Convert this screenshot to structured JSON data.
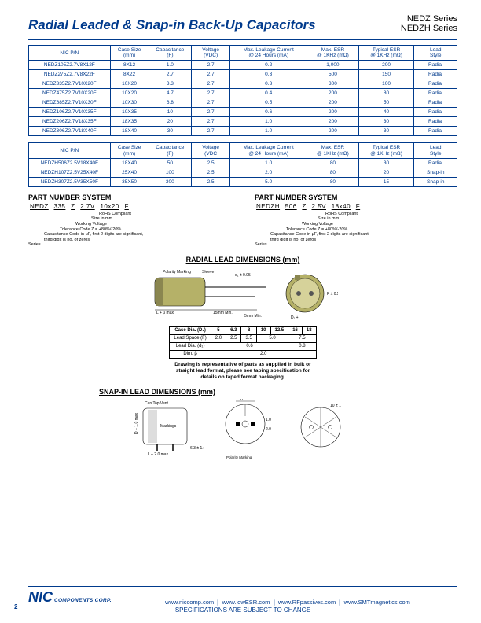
{
  "header": {
    "title": "Radial Leaded & Snap-in Back-Up Capacitors",
    "series1": "NEDZ Series",
    "series2": "NEDZH Series"
  },
  "colors": {
    "brand": "#003a8c",
    "cap_body": "#b5b168",
    "cap_band": "#8a8650"
  },
  "table1": {
    "headers": [
      "NIC P/N",
      "Case Size\n(mm)",
      "Capacitance\n(F)",
      "Voltage\n(VDC)",
      "Max. Leakage Current\n@ 24 Hours (mA)",
      "Max. ESR\n@ 1KHz (mΩ)",
      "Typical ESR\n@ 1KHz (mΩ)",
      "Lead\nStyle"
    ],
    "rows": [
      [
        "NEDZ105Z2.7V8X12F",
        "8X12",
        "1.0",
        "2.7",
        "0.2",
        "1,000",
        "200",
        "Radial"
      ],
      [
        "NEDZ275Z2.7V8X22F",
        "8X22",
        "2.7",
        "2.7",
        "0.3",
        "500",
        "150",
        "Radial"
      ],
      [
        "NEDZ335Z2.7V10X20F",
        "10X20",
        "3.3",
        "2.7",
        "0.3",
        "300",
        "100",
        "Radial"
      ],
      [
        "NEDZ475Z2.7V10X20F",
        "10X20",
        "4.7",
        "2.7",
        "0.4",
        "200",
        "80",
        "Radial"
      ],
      [
        "NEDZ685Z2.7V10X30F",
        "10X30",
        "6.8",
        "2.7",
        "0.5",
        "200",
        "50",
        "Radial"
      ],
      [
        "NEDZ106Z2.7V10X35F",
        "10X35",
        "10",
        "2.7",
        "0.6",
        "200",
        "40",
        "Radial"
      ],
      [
        "NEDZ206Z2.7V18X35F",
        "18X35",
        "20",
        "2.7",
        "1.0",
        "200",
        "30",
        "Radial"
      ],
      [
        "NEDZ306Z2.7V18X40F",
        "18X40",
        "30",
        "2.7",
        "1.0",
        "200",
        "30",
        "Radial"
      ]
    ]
  },
  "table2": {
    "headers": [
      "NIC P/N",
      "Case Size\n(mm)",
      "Capacitance\n(F)",
      "Voltage\n(VDC",
      "Max. Leakage Current\n@ 24 Hours (mA)",
      "Max. ESR\n@ 1KHz (mΩ)",
      "Typical ESR\n@ 1KHz (mΩ)",
      "Lead\nStyle"
    ],
    "rows": [
      [
        "NEDZH506Z2.5V18X40F",
        "18X40",
        "50",
        "2.5",
        "1.0",
        "80",
        "30",
        "Radial"
      ],
      [
        "NEDZH107Z2.5V25X40F",
        "25X40",
        "100",
        "2.5",
        "2.0",
        "80",
        "20",
        "Snap-in"
      ],
      [
        "NEDZH307Z2.5V35X50F",
        "35X50",
        "300",
        "2.5",
        "5.0",
        "80",
        "15",
        "Snap-in"
      ]
    ]
  },
  "pns": {
    "title": "PART NUMBER SYSTEM",
    "left": {
      "parts": [
        "NEDZ",
        "335",
        "Z",
        "2.7V",
        "10x20",
        "F"
      ],
      "notes": [
        "RoHS Compliant",
        "Size in mm",
        "Working Voltage",
        "Tolerance Code Z = +80%/-20%",
        "Capacitance Code in μF, first 2 digits are significant,\nthird digit is no. of zeros",
        "Series"
      ]
    },
    "right": {
      "parts": [
        "NEDZH",
        "506",
        "Z",
        "2.5V",
        "18x40",
        "F"
      ],
      "notes": [
        "RoHS Compliant",
        "Size in mm",
        "Working Voltage",
        "Tolerance Code Z = +80%/-20%",
        "Capacitance Code in μF, first 2 digits are significant,\nthird digit is no. of zeros",
        "Series"
      ]
    }
  },
  "radial": {
    "title": "RADIAL LEAD DIMENSIONS (mm)",
    "labels": {
      "polarity": "Polarity Marking",
      "sleeve": "Sleeve",
      "dtol": "d₁ ± 0.05",
      "ptol": "P ± 0.5",
      "len": "L + β max.",
      "leadmin": "15mm Min.",
      "clearmin": "5mm Min.",
      "diam": "D₁ +"
    },
    "dim_headers": [
      "Case Dia. (D₁)",
      "5",
      "6.3",
      "8",
      "10",
      "12.5",
      "16",
      "18"
    ],
    "dim_rows": [
      [
        "Lead Space (F)",
        "2.0",
        "2.5",
        "3.5",
        "5.0",
        "5.0",
        "7.5",
        "7.5"
      ],
      [
        "Lead Dia. (d₁)",
        "0.6",
        "0.6",
        "0.6",
        "0.6",
        "0.6",
        "0.8",
        "0.8"
      ],
      [
        "Dim. β",
        "2.0",
        "2.0",
        "2.0",
        "2.0",
        "2.0",
        "2.0",
        "2.0"
      ]
    ],
    "note": "Drawing is representative of parts as supplied in bulk or\nstraight lead format, please see taping specification for\ndetails on taped format packaging."
  },
  "snap": {
    "title": "SNAP-IN LEAD DIMENSIONS (mm)",
    "labels": {
      "vent": "Can Top Vent",
      "mark": "Markings",
      "dtol": "D + 1.0 max",
      "ltol": "L + 2.0 max.",
      "b": "6.3\n± 1.0",
      "ten": "10",
      "one": "1.0",
      "twoh": "2.0",
      "tentol": "10 ± 1",
      "polarity": "Polarity Marking\n(- negative terminal marked by\ncross notch)"
    }
  },
  "footer": {
    "corp": "COMPONENTS CORP.",
    "sites": "www.niccomp.com  ❙  www.lowESR.com  ❙  www.RFpassives.com  ❙  www.SMTmagnetics.com",
    "spec": "SPECIFICATIONS ARE SUBJECT TO CHANGE",
    "page": "2"
  }
}
